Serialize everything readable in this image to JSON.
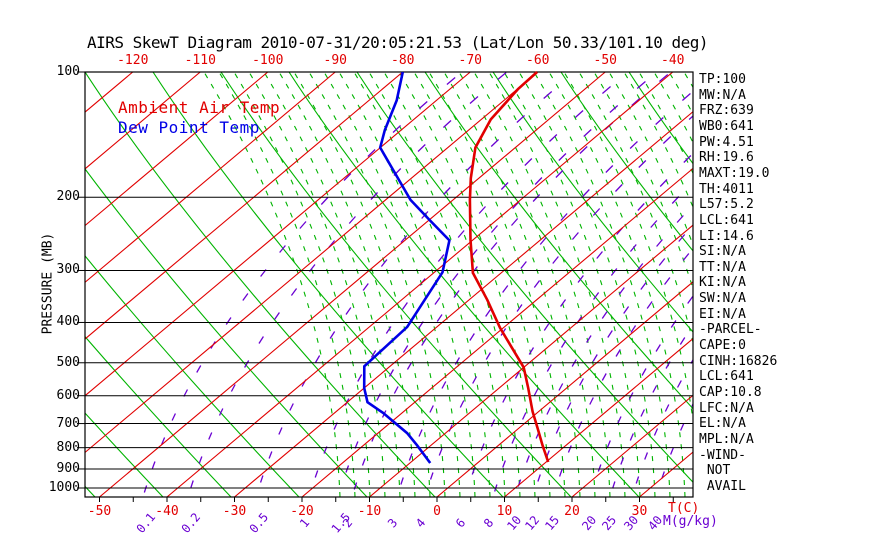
{
  "title": "AIRS SkewT Diagram 2010-07-31/20:05:21.53 (Lat/Lon 50.33/101.10 deg)",
  "legend": {
    "ambient_label": "Ambient Air Temp",
    "dew_label": "Dew Point Temp"
  },
  "axis": {
    "pressure_label": "PRESSURE (MB)",
    "pressure_ticks": [
      100,
      200,
      300,
      400,
      500,
      600,
      700,
      800,
      900,
      1000
    ],
    "top_temp_ticks": [
      -120,
      -110,
      -100,
      -90,
      -80,
      -70,
      -60,
      -50,
      -40
    ],
    "bottom_temp_ticks": [
      -50,
      -40,
      -30,
      -20,
      -10,
      0,
      10,
      20,
      30
    ],
    "temp_unit": "T(C)",
    "mixing_unit": "M(g/kg)",
    "mixing_ticks": [
      {
        "w": "0.1",
        "x": 143
      },
      {
        "w": "0.2",
        "x": 188
      },
      {
        "w": "0.5",
        "x": 256
      },
      {
        "w": "1",
        "x": 309
      },
      {
        "w": "1.5",
        "x": 338
      },
      {
        "w": "2",
        "x": 352
      },
      {
        "w": "3",
        "x": 397
      },
      {
        "w": "4",
        "x": 425
      },
      {
        "w": "6",
        "x": 465
      },
      {
        "w": "8",
        "x": 493
      },
      {
        "w": "10",
        "x": 515
      },
      {
        "w": "12",
        "x": 533
      },
      {
        "w": "15",
        "x": 553
      },
      {
        "w": "20",
        "x": 590
      },
      {
        "w": "25",
        "x": 610
      },
      {
        "w": "30",
        "x": 632
      },
      {
        "w": "40",
        "x": 656
      }
    ]
  },
  "stats": [
    "TP:100",
    "MW:N/A",
    "FRZ:639",
    "WB0:641",
    "PW:4.51",
    "RH:19.6",
    "MAXT:19.0",
    "TH:4011",
    "L57:5.2",
    "LCL:641",
    "LI:14.6",
    "SI:N/A",
    "TT:N/A",
    "KI:N/A",
    "SW:N/A",
    "EI:N/A",
    "-PARCEL-",
    "CAPE:0",
    "CINH:16826",
    "LCL:641",
    "CAP:10.8",
    "LFC:N/A",
    "EL:N/A",
    "MPL:N/A",
    "-WIND-",
    " NOT",
    " AVAIL"
  ],
  "colors": {
    "red": "#e10000",
    "green": "#00b400",
    "purple": "#6a00d2",
    "blue": "#0000e6",
    "black": "#000000"
  },
  "chart_data": {
    "type": "line",
    "title": "AIRS SkewT Diagram 2010-07-31/20:05:21.53 (Lat/Lon 50.33/101.10 deg)",
    "x_axis": {
      "label": "T(C)",
      "surface_ticks": [
        -50,
        -40,
        -30,
        -20,
        -10,
        0,
        10,
        20,
        30
      ],
      "top_ticks": [
        -120,
        -110,
        -100,
        -90,
        -80,
        -70,
        -60,
        -50,
        -40
      ]
    },
    "y_axis": {
      "label": "PRESSURE (MB)",
      "scale": "log",
      "range": [
        100,
        1050
      ],
      "ticks": [
        100,
        200,
        300,
        400,
        500,
        600,
        700,
        800,
        900,
        1000
      ]
    },
    "grid": {
      "isotherm_step_c": 10,
      "mixing_ratio_lines_gkg": [
        0.1,
        0.2,
        0.5,
        1,
        1.5,
        2,
        3,
        4,
        6,
        8,
        10,
        12,
        15,
        20,
        25,
        30,
        40
      ]
    },
    "legend_position": "top-left-inside",
    "series": [
      {
        "name": "Ambient Air Temp",
        "color_key": "red",
        "points_pressure_mb_temp_c": [
          [
            100,
            -60.1
          ],
          [
            110,
            -59.9
          ],
          [
            130,
            -58.6
          ],
          [
            152,
            -55.9
          ],
          [
            180,
            -51.2
          ],
          [
            203,
            -47.5
          ],
          [
            253,
            -40.4
          ],
          [
            304,
            -34.2
          ],
          [
            353,
            -27.3
          ],
          [
            412,
            -20.5
          ],
          [
            474,
            -13.8
          ],
          [
            513,
            -10.0
          ],
          [
            575,
            -5.7
          ],
          [
            655,
            -0.9
          ],
          [
            717,
            2.7
          ],
          [
            789,
            6.5
          ],
          [
            866,
            10.3
          ]
        ]
      },
      {
        "name": "Dew Point Temp",
        "color_key": "blue",
        "points_pressure_mb_temp_c": [
          [
            100,
            -80.0
          ],
          [
            117,
            -75.9
          ],
          [
            138,
            -72.4
          ],
          [
            152,
            -70.0
          ],
          [
            203,
            -56.3
          ],
          [
            227,
            -49.9
          ],
          [
            254,
            -43.4
          ],
          [
            303,
            -38.8
          ],
          [
            410,
            -34.4
          ],
          [
            510,
            -33.8
          ],
          [
            575,
            -30.0
          ],
          [
            622,
            -27.0
          ],
          [
            660,
            -22.8
          ],
          [
            738,
            -15.7
          ],
          [
            789,
            -12.1
          ],
          [
            871,
            -7.0
          ]
        ]
      }
    ]
  }
}
